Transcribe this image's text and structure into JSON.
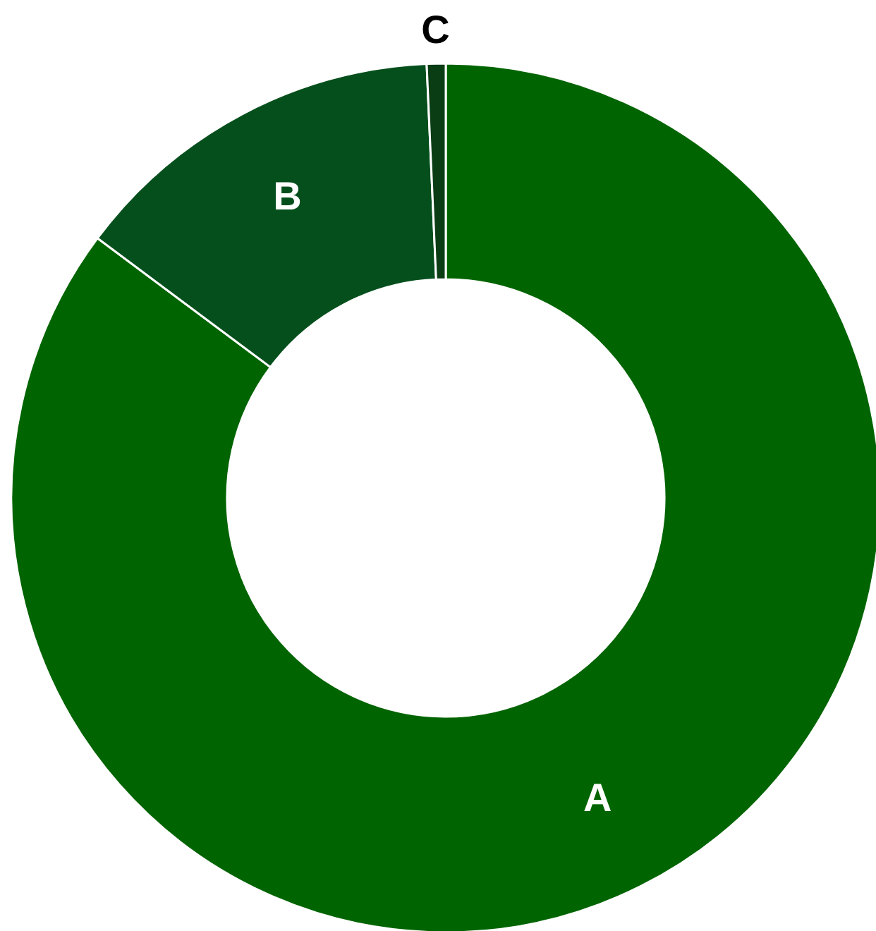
{
  "chart_data": {
    "type": "donut",
    "categories": [
      "A",
      "B",
      "C"
    ],
    "values": [
      85.2,
      14.1,
      0.7
    ],
    "colors": [
      "#006400",
      "#054f1c",
      "#0b3d15"
    ]
  }
}
